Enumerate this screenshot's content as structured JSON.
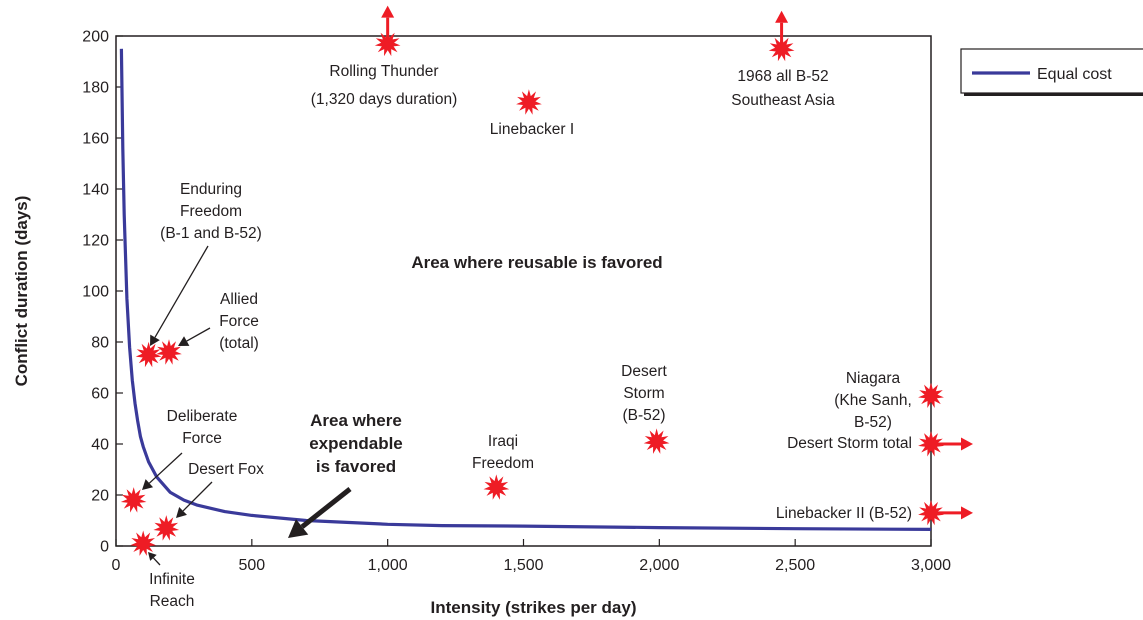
{
  "chart_data": {
    "type": "scatter",
    "xlabel": "Intensity (strikes per day)",
    "ylabel": "Conflict duration (days)",
    "xlim": [
      0,
      3000
    ],
    "ylim": [
      0,
      200
    ],
    "x_ticks": [
      0,
      500,
      1000,
      1500,
      2000,
      2500,
      3000
    ],
    "x_tick_labels": [
      "0",
      "500",
      "1,000",
      "1,500",
      "2,000",
      "2,500",
      "3,000"
    ],
    "y_ticks": [
      0,
      20,
      40,
      60,
      80,
      100,
      120,
      140,
      160,
      180,
      200
    ],
    "y_tick_labels": [
      "0",
      "20",
      "40",
      "60",
      "80",
      "100",
      "120",
      "140",
      "160",
      "180",
      "200"
    ],
    "grid": false,
    "legend": {
      "placement": "top-right",
      "entries": [
        {
          "label": "Equal cost",
          "color": "#3a3a9a"
        }
      ]
    },
    "series": [
      {
        "name": "Equal cost",
        "type": "line",
        "color": "#3a3a9a",
        "x": [
          20,
          25,
          30,
          40,
          50,
          60,
          70,
          80,
          90,
          100,
          120,
          150,
          200,
          250,
          300,
          400,
          500,
          700,
          1000,
          1200,
          1500,
          2000,
          2500,
          3000
        ],
        "y": [
          195,
          156,
          130,
          97,
          78,
          65,
          56,
          49,
          43,
          39,
          33,
          27,
          21,
          18,
          16,
          13.5,
          12,
          10,
          8.5,
          8,
          7.8,
          7.2,
          6.8,
          6.5
        ]
      }
    ],
    "conflicts": [
      {
        "name": "Rolling Thunder",
        "x": 1000,
        "y": 197,
        "off_chart": "up"
      },
      {
        "name": "1968 all B-52 Southeast Asia",
        "x": 2450,
        "y": 195,
        "off_chart": "up"
      },
      {
        "name": "Linebacker I",
        "x": 1520,
        "y": 174
      },
      {
        "name": "Enduring Freedom (B-1 and B-52)",
        "x": 120,
        "y": 75
      },
      {
        "name": "Allied Force (total)",
        "x": 195,
        "y": 76
      },
      {
        "name": "Niagara (Khe Sanh, B-52)",
        "x": 3000,
        "y": 59
      },
      {
        "name": "Desert Storm (B-52)",
        "x": 1990,
        "y": 41
      },
      {
        "name": "Desert Storm total",
        "x": 3000,
        "y": 40,
        "off_chart": "right"
      },
      {
        "name": "Iraqi Freedom",
        "x": 1400,
        "y": 23
      },
      {
        "name": "Deliberate Force",
        "x": 65,
        "y": 18
      },
      {
        "name": "Desert Fox",
        "x": 185,
        "y": 7
      },
      {
        "name": "Infinite Reach",
        "x": 100,
        "y": 1
      },
      {
        "name": "Linebacker II (B-52)",
        "x": 3000,
        "y": 13,
        "off_chart": "right"
      }
    ],
    "labels": {
      "rolling_thunder": [
        "Rolling Thunder",
        "(1,320 days duration)"
      ],
      "sea_1968": [
        "1968 all B-52",
        "Southeast Asia"
      ],
      "linebacker_i": [
        "Linebacker I"
      ],
      "enduring_freedom": [
        "Enduring",
        "Freedom",
        "(B-1 and B-52)"
      ],
      "allied_force": [
        "Allied",
        "Force",
        "(total)"
      ],
      "niagara": [
        "Niagara",
        "(Khe Sanh,",
        "B-52)"
      ],
      "desert_storm_b52": [
        "Desert",
        "Storm",
        "(B-52)"
      ],
      "desert_storm_total": [
        "Desert Storm total"
      ],
      "iraqi_freedom": [
        "Iraqi",
        "Freedom"
      ],
      "deliberate_force": [
        "Deliberate",
        "Force"
      ],
      "desert_fox": [
        "Desert Fox"
      ],
      "infinite_reach": [
        "Infinite",
        "Reach"
      ],
      "linebacker_ii": [
        "Linebacker II (B-52)"
      ]
    },
    "regions": {
      "reusable": [
        "Area where reusable is favored"
      ],
      "expendable": [
        "Area where",
        "expendable",
        "is favored"
      ]
    },
    "colors": {
      "burst": "#ee1c25",
      "arrow": "#ee1c25",
      "curve": "#3a3a9a",
      "text": "#231f20"
    }
  }
}
